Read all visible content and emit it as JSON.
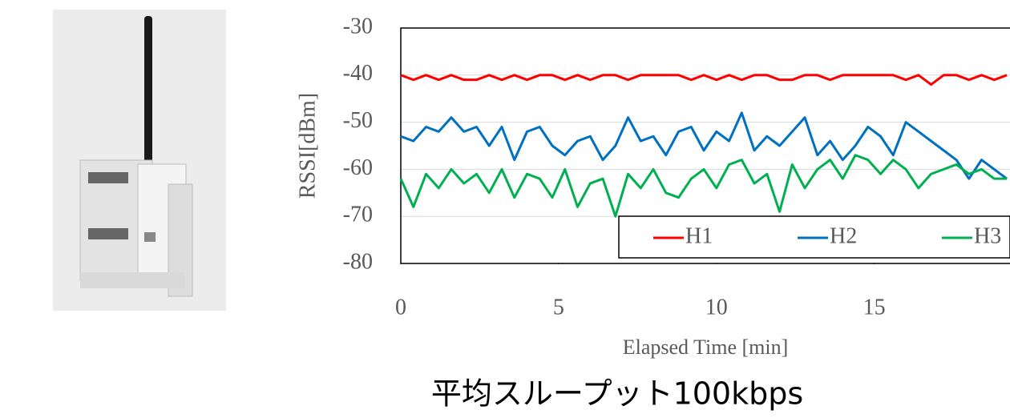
{
  "chart_data": {
    "type": "line",
    "y_label": "RSSI[dBm]",
    "x_label": "Elapsed Time [min]",
    "caption": "平均スループット100kbps",
    "xlim": [
      0,
      19.3
    ],
    "xticks": [
      0,
      5,
      10,
      15
    ],
    "ylim": [
      -80,
      -30
    ],
    "yticks": [
      -80,
      -70,
      -60,
      -50,
      -40,
      -30
    ],
    "legend": "lower right",
    "x": [
      0,
      0.4,
      0.8,
      1.2,
      1.6,
      2,
      2.4,
      2.8,
      3.2,
      3.6,
      4,
      4.4,
      4.8,
      5.2,
      5.6,
      6,
      6.4,
      6.8,
      7.2,
      7.6,
      8,
      8.4,
      8.8,
      9.2,
      9.6,
      10,
      10.4,
      10.8,
      11.2,
      11.6,
      12,
      12.4,
      12.8,
      13.2,
      13.6,
      14,
      14.4,
      14.8,
      15.2,
      15.6,
      16,
      16.4,
      16.8,
      17.2,
      17.6,
      18,
      18.4,
      18.8,
      19.2
    ],
    "series": [
      {
        "name": "H1",
        "color": "#ff0000",
        "values": [
          -40,
          -41,
          -40,
          -41,
          -40,
          -41,
          -41,
          -40,
          -41,
          -40,
          -41,
          -40,
          -40,
          -41,
          -40,
          -41,
          -40,
          -40,
          -41,
          -40,
          -40,
          -40,
          -40,
          -41,
          -40,
          -41,
          -40,
          -41,
          -40,
          -40,
          -41,
          -41,
          -40,
          -40,
          -41,
          -40,
          -40,
          -40,
          -40,
          -40,
          -41,
          -40,
          -42,
          -40,
          -40,
          -41,
          -40,
          -41,
          -40
        ]
      },
      {
        "name": "H2",
        "color": "#0070c0",
        "values": [
          -53,
          -54,
          -51,
          -52,
          -49,
          -52,
          -51,
          -55,
          -51,
          -58,
          -52,
          -51,
          -55,
          -57,
          -54,
          -53,
          -58,
          -55,
          -49,
          -54,
          -53,
          -57,
          -52,
          -51,
          -56,
          -52,
          -54,
          -48,
          -56,
          -53,
          -55,
          -52,
          -49,
          -57,
          -54,
          -58,
          -55,
          -51,
          -53,
          -57,
          -50,
          -52,
          -54,
          -56,
          -58,
          -62,
          -58,
          -60,
          -62
        ]
      },
      {
        "name": "H3",
        "color": "#00b050",
        "values": [
          -62,
          -68,
          -61,
          -64,
          -60,
          -63,
          -61,
          -65,
          -60,
          -66,
          -61,
          -62,
          -66,
          -60,
          -68,
          -63,
          -62,
          -70,
          -61,
          -64,
          -60,
          -65,
          -66,
          -62,
          -60,
          -64,
          -59,
          -58,
          -63,
          -61,
          -69,
          -59,
          -64,
          -60,
          -58,
          -62,
          -57,
          -58,
          -61,
          -58,
          -60,
          -64,
          -61,
          -60,
          -59,
          -61,
          -60,
          -62,
          -62
        ]
      }
    ]
  }
}
